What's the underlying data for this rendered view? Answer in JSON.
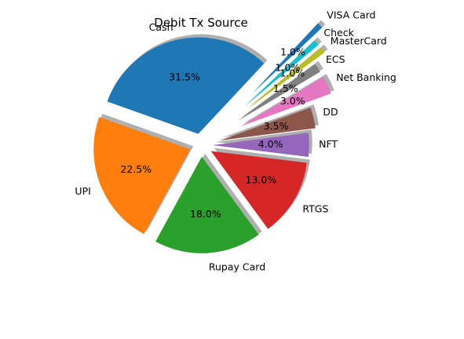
{
  "chart_data": {
    "type": "pie",
    "title": "Debit Tx Source",
    "shadow": true,
    "exploded": true,
    "start_angle_deg": 47,
    "direction": "counterclockwise",
    "slices": [
      {
        "label": "Cash",
        "value": 31.5,
        "pct_label": "31.5%",
        "color": "#1f77b4"
      },
      {
        "label": "UPI",
        "value": 22.5,
        "pct_label": "22.5%",
        "color": "#ff7f0e"
      },
      {
        "label": "Rupay Card",
        "value": 18.0,
        "pct_label": "18.0%",
        "color": "#2ca02c"
      },
      {
        "label": "RTGS",
        "value": 13.0,
        "pct_label": "13.0%",
        "color": "#d62728"
      },
      {
        "label": "NFT",
        "value": 4.0,
        "pct_label": "4.0%",
        "color": "#9467bd"
      },
      {
        "label": "DD",
        "value": 3.5,
        "pct_label": "3.5%",
        "color": "#8c564b"
      },
      {
        "label": "Net Banking",
        "value": 3.0,
        "pct_label": "3.0%",
        "color": "#e377c2"
      },
      {
        "label": "ECS",
        "value": 1.5,
        "pct_label": "1.5%",
        "color": "#7f7f7f"
      },
      {
        "label": "MasterCard",
        "value": 1.0,
        "pct_label": "1.0%",
        "color": "#bcbd22"
      },
      {
        "label": "Check",
        "value": 1.0,
        "pct_label": "1.0%",
        "color": "#17becf"
      },
      {
        "label": "VISA Card",
        "value": 1.0,
        "pct_label": "1.0%",
        "color": "#1f77b4"
      }
    ]
  }
}
